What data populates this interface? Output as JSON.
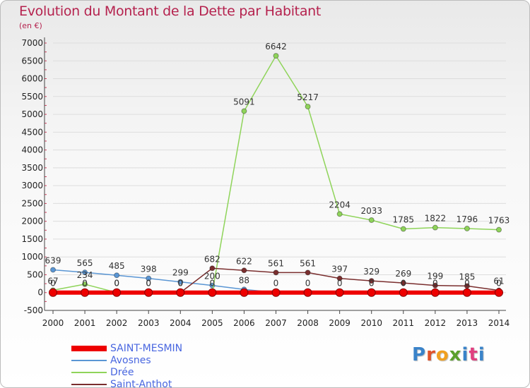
{
  "title": "Evolution du Montant de la Dette par Habitant",
  "unit": "(en €)",
  "logo": "Proxiti",
  "colors": {
    "title": "#b5224e",
    "legend_text": "#4866e0",
    "axis": "#444444",
    "grid": "#dddddd"
  },
  "chart_data": {
    "type": "line",
    "categories": [
      "2000",
      "2001",
      "2002",
      "2003",
      "2004",
      "2005",
      "2006",
      "2007",
      "2008",
      "2009",
      "2010",
      "2011",
      "2012",
      "2013",
      "2014"
    ],
    "ylim": [
      -500,
      7000
    ],
    "yticks": [
      -500,
      0,
      500,
      1000,
      1500,
      2000,
      2500,
      3000,
      3500,
      4000,
      4500,
      5000,
      5500,
      6000,
      6500,
      7000
    ],
    "grid": "horizontal",
    "legend_position": "bottom-left",
    "series": [
      {
        "name": "SAINT-MESMIN",
        "color": "#ee0000",
        "values": [
          0,
          0,
          0,
          0,
          0,
          0,
          0,
          0,
          0,
          0,
          0,
          0,
          0,
          0,
          0
        ],
        "labels": [
          "",
          "",
          "",
          "",
          "",
          "",
          "",
          "",
          "",
          "",
          "",
          "",
          "",
          "",
          ""
        ]
      },
      {
        "name": "Avosnes",
        "color": "#5a96d4",
        "values": [
          639,
          565,
          485,
          398,
          299,
          200,
          88,
          0,
          0,
          0,
          0,
          0,
          0,
          0,
          0
        ],
        "labels": [
          "639",
          "565",
          "485",
          "398",
          "299",
          "200",
          "88",
          "0",
          "0",
          "0",
          "0",
          "0",
          "0",
          "0",
          "0"
        ]
      },
      {
        "name": "Drée",
        "color": "#8fd45a",
        "values": [
          67,
          234,
          0,
          0,
          0,
          0,
          5091,
          6642,
          5217,
          2204,
          2033,
          1785,
          1822,
          1796,
          1763
        ],
        "labels": [
          "67",
          "234",
          "0",
          "0",
          "0",
          "0",
          "5091",
          "6642",
          "5217",
          "2204",
          "2033",
          "1785",
          "1822",
          "1796",
          "1763"
        ]
      },
      {
        "name": "Saint-Anthot",
        "color": "#7a2e2e",
        "values": [
          0,
          0,
          0,
          0,
          0,
          682,
          622,
          561,
          561,
          397,
          329,
          269,
          199,
          185,
          61
        ],
        "labels": [
          "0",
          "0",
          "0",
          "0",
          "0",
          "682",
          "622",
          "561",
          "561",
          "397",
          "329",
          "269",
          "199",
          "185",
          "61"
        ]
      }
    ]
  }
}
